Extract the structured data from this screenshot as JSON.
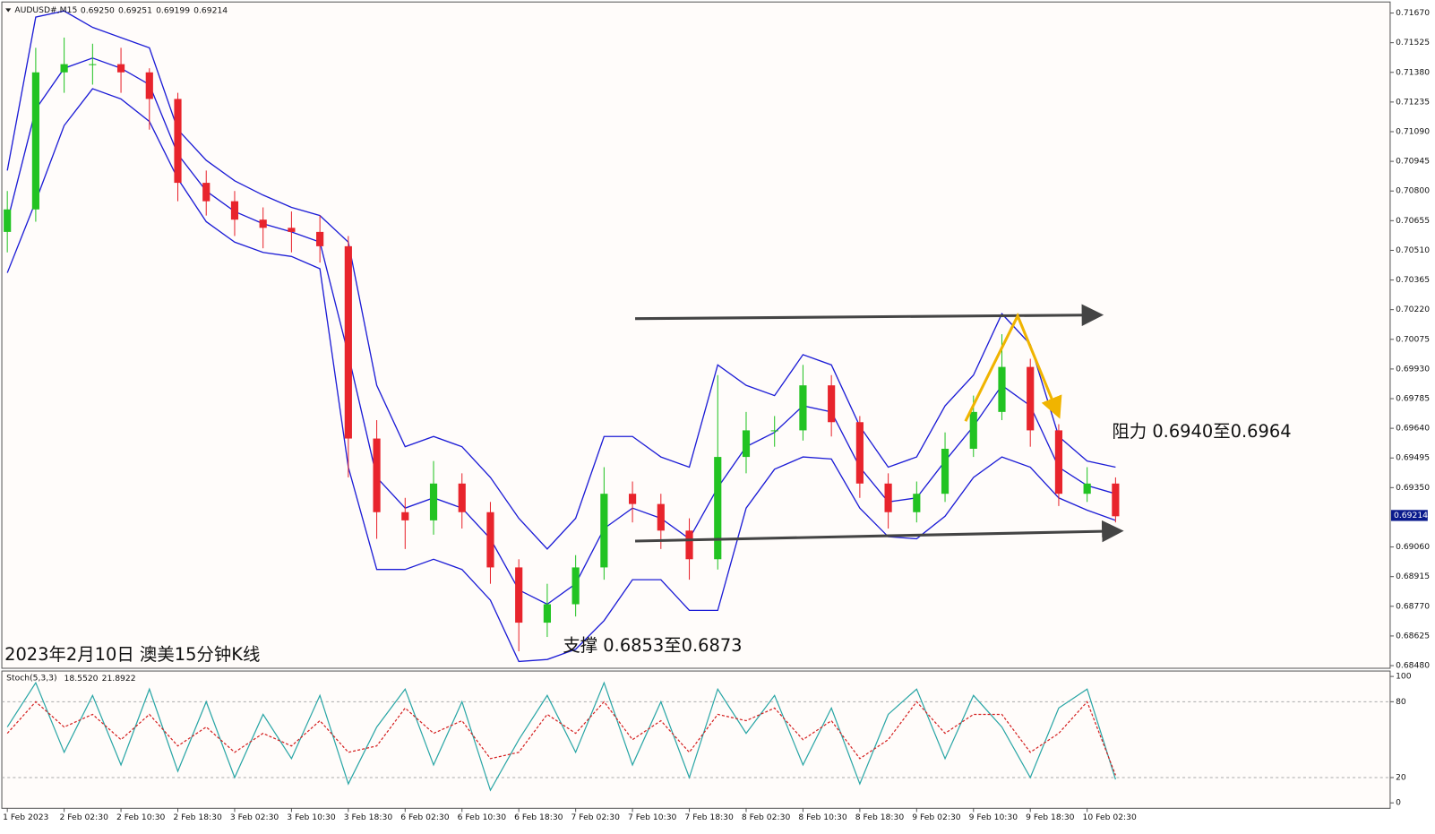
{
  "chart_data": [
    {
      "type": "candlestick",
      "title": "AUDUSD#,M15",
      "header_values": [
        "0.69250",
        "0.69251",
        "0.69199",
        "0.69214"
      ],
      "caption": "2023年2月10日 澳美15分钟K线",
      "annotations": [
        "支撑 0.6853至0.6873",
        "阻力 0.6940至0.6964"
      ],
      "last_price": 0.69214,
      "categories": [
        "1 Feb 2023",
        null,
        "2 Feb 02:30",
        null,
        "2 Feb 10:30",
        null,
        "2 Feb 18:30",
        null,
        "3 Feb 02:30",
        null,
        "3 Feb 10:30",
        null,
        "3 Feb 18:30",
        null,
        "6 Feb 02:30",
        null,
        "6 Feb 10:30",
        null,
        "6 Feb 18:30",
        null,
        "7 Feb 02:30",
        null,
        "7 Feb 10:30",
        null,
        "7 Feb 18:30",
        null,
        "8 Feb 02:30",
        null,
        "8 Feb 10:30",
        null,
        "8 Feb 18:30",
        null,
        "9 Feb 02:30",
        null,
        "9 Feb 10:30",
        null,
        "9 Feb 18:30",
        null,
        "10 Feb 02:30",
        null
      ],
      "open": [
        0.706,
        0.7071,
        0.7138,
        0.7142,
        0.7142,
        0.7138,
        0.7125,
        0.7084,
        0.7075,
        0.7066,
        0.7062,
        0.706,
        0.7053,
        0.6959,
        0.6923,
        0.6919,
        0.6937,
        0.6923,
        0.6896,
        0.6869,
        0.6878,
        0.6896,
        0.6932,
        0.6927,
        0.6914,
        0.69,
        0.695,
        0.6963,
        0.6963,
        0.6985,
        0.6967,
        0.6937,
        0.6923,
        0.6932,
        0.6954,
        0.6972,
        0.6994,
        0.6963,
        0.6932,
        0.6937
      ],
      "high": [
        0.708,
        0.715,
        0.7155,
        0.7152,
        0.715,
        0.714,
        0.7128,
        0.709,
        0.708,
        0.7072,
        0.707,
        0.7068,
        0.7058,
        0.6968,
        0.693,
        0.6948,
        0.6942,
        0.6928,
        0.69,
        0.6888,
        0.6902,
        0.6945,
        0.6938,
        0.6932,
        0.692,
        0.699,
        0.6972,
        0.697,
        0.6995,
        0.699,
        0.697,
        0.6942,
        0.6938,
        0.6962,
        0.698,
        0.701,
        0.6998,
        0.6966,
        0.6945,
        0.694
      ],
      "low": [
        0.705,
        0.7065,
        0.7128,
        0.7132,
        0.7128,
        0.711,
        0.7075,
        0.7068,
        0.7058,
        0.7052,
        0.705,
        0.7045,
        0.694,
        0.691,
        0.6905,
        0.6912,
        0.6915,
        0.6888,
        0.6855,
        0.6862,
        0.6872,
        0.689,
        0.6918,
        0.6905,
        0.689,
        0.6895,
        0.6942,
        0.6955,
        0.6958,
        0.696,
        0.693,
        0.6915,
        0.6918,
        0.6928,
        0.695,
        0.6968,
        0.6955,
        0.6926,
        0.6928,
        0.6918
      ],
      "close": [
        0.7071,
        0.7138,
        0.7142,
        0.7142,
        0.7138,
        0.7125,
        0.7084,
        0.7075,
        0.7066,
        0.7062,
        0.706,
        0.7053,
        0.6959,
        0.6923,
        0.6919,
        0.6937,
        0.6923,
        0.6896,
        0.6869,
        0.6878,
        0.6896,
        0.6932,
        0.6927,
        0.6914,
        0.69,
        0.695,
        0.6963,
        0.6963,
        0.6985,
        0.6967,
        0.6937,
        0.6923,
        0.6932,
        0.6954,
        0.6972,
        0.6994,
        0.6963,
        0.6932,
        0.6937,
        0.6921
      ],
      "upper_band": [
        0.709,
        0.7165,
        0.7168,
        0.716,
        0.7155,
        0.715,
        0.711,
        0.7095,
        0.7085,
        0.7078,
        0.7072,
        0.7068,
        0.7055,
        0.6985,
        0.6955,
        0.696,
        0.6955,
        0.694,
        0.692,
        0.6905,
        0.692,
        0.696,
        0.696,
        0.695,
        0.6945,
        0.6995,
        0.6985,
        0.698,
        0.7,
        0.6995,
        0.6965,
        0.6945,
        0.695,
        0.6975,
        0.699,
        0.702,
        0.7005,
        0.696,
        0.6948,
        0.6945
      ],
      "middle_band": [
        0.7065,
        0.712,
        0.714,
        0.7145,
        0.714,
        0.7132,
        0.7098,
        0.708,
        0.707,
        0.7064,
        0.706,
        0.7055,
        0.7,
        0.694,
        0.6925,
        0.693,
        0.6925,
        0.691,
        0.6885,
        0.6878,
        0.6888,
        0.6915,
        0.6925,
        0.692,
        0.691,
        0.6935,
        0.6955,
        0.6962,
        0.6975,
        0.6972,
        0.6945,
        0.6928,
        0.693,
        0.6948,
        0.6965,
        0.6985,
        0.6975,
        0.6945,
        0.6936,
        0.6932
      ],
      "lower_band": [
        0.704,
        0.7075,
        0.7112,
        0.713,
        0.7125,
        0.7114,
        0.7086,
        0.7065,
        0.7055,
        0.705,
        0.7048,
        0.7042,
        0.6945,
        0.6895,
        0.6895,
        0.69,
        0.6895,
        0.688,
        0.685,
        0.6851,
        0.6856,
        0.687,
        0.689,
        0.689,
        0.6875,
        0.6875,
        0.6925,
        0.6944,
        0.695,
        0.6949,
        0.6925,
        0.6911,
        0.691,
        0.6921,
        0.694,
        0.695,
        0.6945,
        0.693,
        0.6924,
        0.6919
      ],
      "up_color": "#22c322",
      "down_color": "#e8242c",
      "band_color": "#1c1cd6",
      "ylim": [
        0.68467,
        0.71724
      ],
      "yticks": [
        {
          "value": 0.7167,
          "label": "0.71670"
        },
        {
          "value": 0.71525,
          "label": "0.71525"
        },
        {
          "value": 0.7138,
          "label": "0.71380"
        },
        {
          "value": 0.71235,
          "label": "0.71235"
        },
        {
          "value": 0.7109,
          "label": "0.71090"
        },
        {
          "value": 0.70945,
          "label": "0.70945"
        },
        {
          "value": 0.708,
          "label": "0.70800"
        },
        {
          "value": 0.70655,
          "label": "0.70655"
        },
        {
          "value": 0.7051,
          "label": "0.70510"
        },
        {
          "value": 0.70365,
          "label": "0.70365"
        },
        {
          "value": 0.7022,
          "label": "0.70220"
        },
        {
          "value": 0.70075,
          "label": "0.70075"
        },
        {
          "value": 0.6993,
          "label": "0.69930"
        },
        {
          "value": 0.69785,
          "label": "0.69785"
        },
        {
          "value": 0.6964,
          "label": "0.69640"
        },
        {
          "value": 0.69495,
          "label": "0.69495"
        },
        {
          "value": 0.6935,
          "label": "0.69350"
        },
        {
          "value": 0.6906,
          "label": "0.69060"
        },
        {
          "value": 0.68915,
          "label": "0.68915"
        },
        {
          "value": 0.6877,
          "label": "0.68770"
        },
        {
          "value": 0.68625,
          "label": "0.68625"
        },
        {
          "value": 0.6848,
          "label": "0.68480"
        }
      ]
    },
    {
      "type": "stochastic",
      "title": "Stoch(5,3,3)",
      "readings": [
        "18.5520",
        "21.8922"
      ],
      "main": {
        "color": "#2aa6a6",
        "values": [
          60,
          95,
          40,
          85,
          30,
          90,
          25,
          80,
          20,
          70,
          35,
          85,
          15,
          60,
          90,
          30,
          80,
          10,
          50,
          85,
          40,
          95,
          30,
          80,
          20,
          90,
          55,
          85,
          30,
          75,
          15,
          70,
          90,
          35,
          85,
          60,
          20,
          75,
          90,
          18.552
        ]
      },
      "signal": {
        "color": "#d42020",
        "values": [
          55,
          80,
          60,
          70,
          50,
          70,
          45,
          60,
          40,
          55,
          45,
          65,
          40,
          45,
          75,
          55,
          65,
          35,
          40,
          70,
          55,
          80,
          50,
          65,
          40,
          70,
          65,
          75,
          50,
          65,
          35,
          50,
          80,
          55,
          70,
          70,
          40,
          55,
          80,
          21.8922
        ]
      },
      "levels": [
        80,
        20
      ],
      "ylim": [
        -4.3,
        104.3
      ],
      "yticks": [
        100,
        80,
        20,
        0
      ]
    }
  ]
}
